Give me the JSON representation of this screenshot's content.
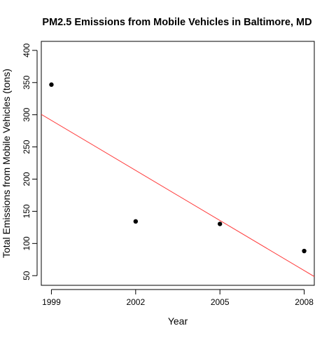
{
  "chart_data": {
    "type": "scatter",
    "title": "PM2.5 Emissions from Mobile Vehicles in Baltimore, MD",
    "xlabel": "Year",
    "ylabel": "Total Emissions from Mobile Vehicles (tons)",
    "x": [
      1999,
      2002,
      2005,
      2008
    ],
    "y": [
      346.8,
      134.3,
      130.4,
      88.3
    ],
    "xticks": [
      1999,
      2002,
      2005,
      2008
    ],
    "yticks": [
      50,
      100,
      150,
      200,
      250,
      300,
      350,
      400
    ],
    "xlim": [
      1998.64,
      2008.36
    ],
    "ylim": [
      35.0,
      414.0
    ],
    "trendline": {
      "x": [
        1998.64,
        2008.36
      ],
      "y": [
        300.6,
        48.6
      ]
    },
    "grid": false,
    "legend": "none",
    "colors": {
      "points": "#000000",
      "trendline": "#ff3b3b",
      "axes": "#000000"
    }
  }
}
